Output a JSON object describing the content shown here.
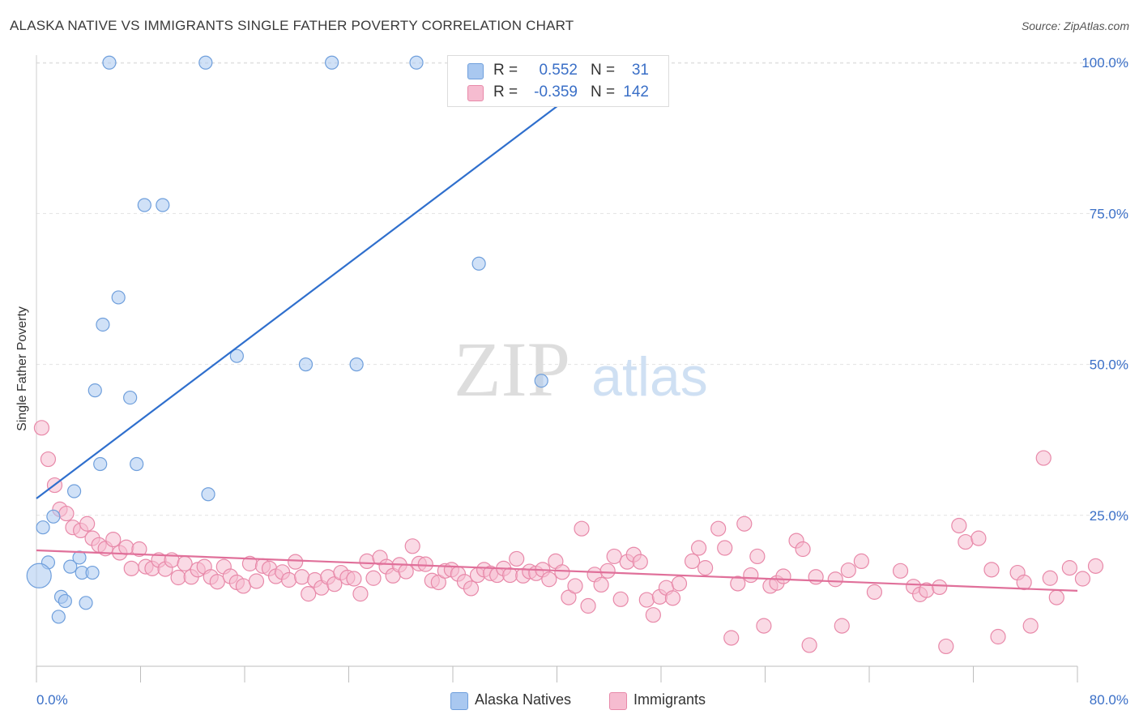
{
  "title": "ALASKA NATIVE VS IMMIGRANTS SINGLE FATHER POVERTY CORRELATION CHART",
  "source": "Source: ZipAtlas.com",
  "watermark": {
    "zip": "ZIP",
    "atlas": "atlas"
  },
  "legend_top": {
    "rows": [
      {
        "r_label": "R =",
        "r_value": "0.552",
        "n_label": "N =",
        "n_value": "31",
        "color": "#a9c8f0",
        "border": "#6f9fdc"
      },
      {
        "r_label": "R =",
        "r_value": "-0.359",
        "n_label": "N =",
        "n_value": "142",
        "color": "#f6bcd0",
        "border": "#e889a9"
      }
    ]
  },
  "legend_bottom": {
    "items": [
      {
        "label": "Alaska Natives",
        "color": "#a9c8f0",
        "border": "#6f9fdc"
      },
      {
        "label": "Immigrants",
        "color": "#f6bcd0",
        "border": "#e889a9"
      }
    ]
  },
  "chart_data": {
    "type": "scatter",
    "title": "ALASKA NATIVE VS IMMIGRANTS SINGLE FATHER POVERTY CORRELATION CHART",
    "xlabel": "",
    "ylabel": "Single Father Poverty",
    "xlim": [
      0,
      80
    ],
    "ylim": [
      0,
      105
    ],
    "x_tick_labels": [
      "0.0%",
      "80.0%"
    ],
    "y_ticks": [
      25,
      50,
      75,
      100
    ],
    "y_tick_labels": [
      "25.0%",
      "50.0%",
      "75.0%",
      "100.0%"
    ],
    "grid": "horizontal dashed",
    "legend_position": "top-center and bottom",
    "colors": {
      "alaska_fill": "#a9c8f0",
      "alaska_stroke": "#6f9fdc",
      "alaska_line": "#2f6fcd",
      "imm_fill": "#f6bcd0",
      "imm_stroke": "#e889a9",
      "imm_line": "#e0709a",
      "axis_text": "#3a6fc7"
    },
    "series": [
      {
        "name": "Alaska Natives",
        "trend": {
          "x": [
            0,
            42
          ],
          "y": [
            27.8,
            96
          ]
        },
        "points": [
          [
            5.6,
            100
          ],
          [
            13,
            100
          ],
          [
            22.7,
            100
          ],
          [
            29.2,
            100
          ],
          [
            8.3,
            76.4
          ],
          [
            9.7,
            76.4
          ],
          [
            34,
            66.7
          ],
          [
            6.3,
            61.1
          ],
          [
            5.1,
            56.6
          ],
          [
            15.4,
            51.4
          ],
          [
            20.7,
            50
          ],
          [
            24.6,
            50
          ],
          [
            38.8,
            47.3
          ],
          [
            4.5,
            45.7
          ],
          [
            7.2,
            44.5
          ],
          [
            4.9,
            33.5
          ],
          [
            7.7,
            33.5
          ],
          [
            2.9,
            29
          ],
          [
            13.2,
            28.5
          ],
          [
            1.3,
            24.8
          ],
          [
            0.5,
            23
          ],
          [
            3.3,
            18
          ],
          [
            0.9,
            17.2
          ],
          [
            2.6,
            16.5
          ],
          [
            3.5,
            15.5
          ],
          [
            4.3,
            15.5
          ],
          [
            1.9,
            11.5
          ],
          [
            2.2,
            10.8
          ],
          [
            0.2,
            15
          ],
          [
            3.8,
            10.5
          ],
          [
            1.7,
            8.2
          ]
        ]
      },
      {
        "name": "Immigrants",
        "trend": {
          "x": [
            0,
            80
          ],
          "y": [
            19.2,
            12.5
          ]
        },
        "points": [
          [
            0.4,
            39.5
          ],
          [
            0.9,
            34.3
          ],
          [
            1.4,
            30
          ],
          [
            1.8,
            26
          ],
          [
            2.3,
            25.3
          ],
          [
            2.8,
            23
          ],
          [
            3.4,
            22.5
          ],
          [
            3.9,
            23.6
          ],
          [
            4.3,
            21.2
          ],
          [
            4.8,
            20.1
          ],
          [
            5.3,
            19.5
          ],
          [
            5.9,
            21
          ],
          [
            6.4,
            18.8
          ],
          [
            6.9,
            19.7
          ],
          [
            7.3,
            16.2
          ],
          [
            7.9,
            19.4
          ],
          [
            8.4,
            16.5
          ],
          [
            8.9,
            16.2
          ],
          [
            9.4,
            17.6
          ],
          [
            9.9,
            16.1
          ],
          [
            10.4,
            17.6
          ],
          [
            10.9,
            14.7
          ],
          [
            11.4,
            17
          ],
          [
            11.9,
            14.8
          ],
          [
            12.4,
            16
          ],
          [
            12.9,
            16.5
          ],
          [
            13.4,
            14.8
          ],
          [
            13.9,
            14
          ],
          [
            14.4,
            16.5
          ],
          [
            14.9,
            14.9
          ],
          [
            15.4,
            13.9
          ],
          [
            15.9,
            13.3
          ],
          [
            16.4,
            17
          ],
          [
            16.9,
            14.1
          ],
          [
            17.4,
            16.6
          ],
          [
            17.9,
            16.2
          ],
          [
            18.4,
            14.9
          ],
          [
            18.9,
            15.6
          ],
          [
            19.4,
            14.3
          ],
          [
            19.9,
            17.3
          ],
          [
            20.4,
            14.8
          ],
          [
            20.9,
            12
          ],
          [
            21.4,
            14.3
          ],
          [
            21.9,
            13
          ],
          [
            22.4,
            14.8
          ],
          [
            22.9,
            13.6
          ],
          [
            23.4,
            15.5
          ],
          [
            23.9,
            14.7
          ],
          [
            24.4,
            14.5
          ],
          [
            24.9,
            12
          ],
          [
            25.4,
            17.4
          ],
          [
            25.9,
            14.6
          ],
          [
            26.4,
            18
          ],
          [
            26.9,
            16.5
          ],
          [
            27.4,
            15
          ],
          [
            27.9,
            16.8
          ],
          [
            28.4,
            15.7
          ],
          [
            28.9,
            19.9
          ],
          [
            29.4,
            17
          ],
          [
            29.9,
            16.9
          ],
          [
            30.4,
            14.2
          ],
          [
            30.9,
            13.9
          ],
          [
            31.4,
            15.8
          ],
          [
            31.9,
            16
          ],
          [
            32.4,
            15.3
          ],
          [
            32.9,
            14
          ],
          [
            33.4,
            12.9
          ],
          [
            33.9,
            15.1
          ],
          [
            34.4,
            16
          ],
          [
            34.9,
            15.4
          ],
          [
            35.4,
            15.1
          ],
          [
            35.9,
            16.2
          ],
          [
            36.4,
            15.1
          ],
          [
            36.9,
            17.8
          ],
          [
            37.4,
            15
          ],
          [
            37.9,
            15.7
          ],
          [
            38.4,
            15.4
          ],
          [
            38.9,
            16
          ],
          [
            39.4,
            14.4
          ],
          [
            39.9,
            17.4
          ],
          [
            40.4,
            15.6
          ],
          [
            40.9,
            11.4
          ],
          [
            41.4,
            13.3
          ],
          [
            41.9,
            22.8
          ],
          [
            42.4,
            10
          ],
          [
            42.9,
            15.2
          ],
          [
            43.4,
            13.5
          ],
          [
            43.9,
            15.8
          ],
          [
            44.4,
            18.2
          ],
          [
            44.9,
            11.1
          ],
          [
            45.4,
            17.3
          ],
          [
            45.9,
            18.5
          ],
          [
            46.4,
            17.3
          ],
          [
            46.9,
            11
          ],
          [
            47.4,
            8.5
          ],
          [
            47.9,
            11.5
          ],
          [
            48.4,
            13
          ],
          [
            48.9,
            11.3
          ],
          [
            49.4,
            13.7
          ],
          [
            50.4,
            17.4
          ],
          [
            50.9,
            19.6
          ],
          [
            51.4,
            16.3
          ],
          [
            52.4,
            22.8
          ],
          [
            52.9,
            19.6
          ],
          [
            53.4,
            4.7
          ],
          [
            53.9,
            13.7
          ],
          [
            54.4,
            23.6
          ],
          [
            54.9,
            15.1
          ],
          [
            55.4,
            18.2
          ],
          [
            55.9,
            6.7
          ],
          [
            56.4,
            13.3
          ],
          [
            56.9,
            13.8
          ],
          [
            57.4,
            14.9
          ],
          [
            58.4,
            20.8
          ],
          [
            58.9,
            19.4
          ],
          [
            59.4,
            3.5
          ],
          [
            59.9,
            14.8
          ],
          [
            61.4,
            14.4
          ],
          [
            61.9,
            6.7
          ],
          [
            62.4,
            15.9
          ],
          [
            63.4,
            17.4
          ],
          [
            64.4,
            12.3
          ],
          [
            66.4,
            15.8
          ],
          [
            67.4,
            13.2
          ],
          [
            67.9,
            11.9
          ],
          [
            68.4,
            12.6
          ],
          [
            69.4,
            13.1
          ],
          [
            69.9,
            3.3
          ],
          [
            70.9,
            23.3
          ],
          [
            71.4,
            20.6
          ],
          [
            72.4,
            21.2
          ],
          [
            73.4,
            16
          ],
          [
            73.9,
            4.9
          ],
          [
            75.4,
            15.5
          ],
          [
            75.9,
            13.9
          ],
          [
            76.4,
            6.7
          ],
          [
            77.4,
            34.5
          ],
          [
            77.9,
            14.6
          ],
          [
            78.4,
            11.4
          ],
          [
            79.4,
            16.3
          ],
          [
            80.4,
            14.5
          ],
          [
            81.4,
            16.6
          ]
        ]
      }
    ]
  }
}
